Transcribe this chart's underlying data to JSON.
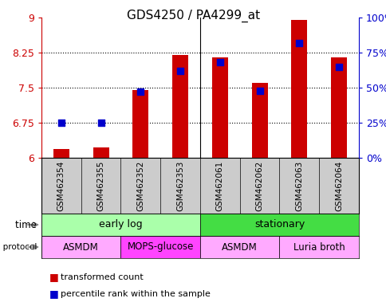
{
  "title": "GDS4250 / PA4299_at",
  "samples": [
    "GSM462354",
    "GSM462355",
    "GSM462352",
    "GSM462353",
    "GSM462061",
    "GSM462062",
    "GSM462063",
    "GSM462064"
  ],
  "red_values": [
    6.18,
    6.22,
    7.45,
    8.2,
    8.15,
    7.6,
    8.95,
    8.15
  ],
  "blue_values": [
    25,
    25,
    47,
    62,
    68,
    48,
    82,
    65
  ],
  "ylim": [
    6.0,
    9.0
  ],
  "yticks_left": [
    6.0,
    6.75,
    7.5,
    8.25,
    9.0
  ],
  "ytick_labels_left": [
    "6",
    "6.75",
    "7.5",
    "8.25",
    "9"
  ],
  "yticks_right": [
    0,
    25,
    50,
    75,
    100
  ],
  "ytick_labels_right": [
    "0%",
    "25%",
    "50%",
    "75%",
    "100%"
  ],
  "dotted_lines": [
    6.75,
    7.5,
    8.25
  ],
  "time_groups": [
    {
      "label": "early log",
      "start": 0,
      "end": 4,
      "color": "#aaffaa"
    },
    {
      "label": "stationary",
      "start": 4,
      "end": 8,
      "color": "#44dd44"
    }
  ],
  "protocol_groups": [
    {
      "label": "ASMDM",
      "start": 0,
      "end": 2,
      "color": "#ffaaff"
    },
    {
      "label": "MOPS-glucose",
      "start": 2,
      "end": 4,
      "color": "#ff44ff"
    },
    {
      "label": "ASMDM",
      "start": 4,
      "end": 6,
      "color": "#ffaaff"
    },
    {
      "label": "Luria broth",
      "start": 6,
      "end": 8,
      "color": "#ffaaff"
    }
  ],
  "bar_color": "#cc0000",
  "dot_color": "#0000cc",
  "bar_width": 0.4,
  "dot_size": 40,
  "background_color": "#ffffff",
  "left_axis_color": "#cc0000",
  "right_axis_color": "#0000cc",
  "label_bg_color": "#cccccc",
  "legend_items": [
    {
      "label": "transformed count",
      "color": "#cc0000"
    },
    {
      "label": "percentile rank within the sample",
      "color": "#0000cc"
    }
  ]
}
